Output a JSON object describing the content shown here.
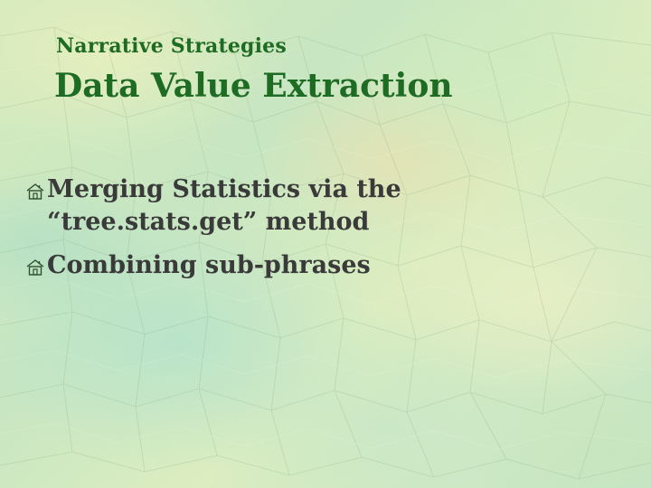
{
  "slide": {
    "subtitle": "Narrative Strategies",
    "title": "Data Value Extraction",
    "bullets": [
      {
        "icon": "house-icon",
        "text": "Merging Statistics via the “tree.stats.get” method"
      },
      {
        "icon": "house-icon",
        "text": "Combining sub-phrases"
      }
    ],
    "colors": {
      "title": "#1e6b24",
      "body": "#3a3a3a",
      "background": "#d6ebbd"
    }
  }
}
